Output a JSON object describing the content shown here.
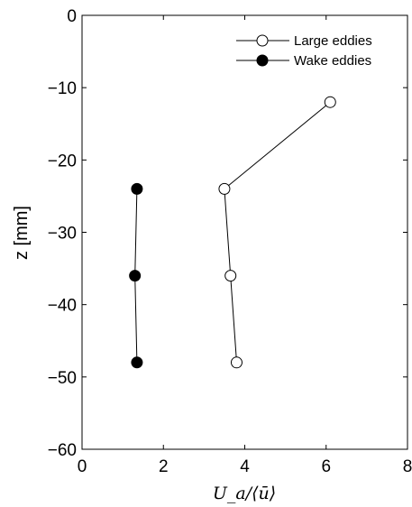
{
  "chart_data": {
    "type": "line",
    "xlabel": "U_a/⟨ū⟩",
    "ylabel": "z [mm]",
    "xlim": [
      0,
      8
    ],
    "ylim": [
      -60,
      0
    ],
    "xticks": [
      0,
      2,
      4,
      6,
      8
    ],
    "yticks": [
      0,
      -10,
      -20,
      -30,
      -40,
      -50,
      -60
    ],
    "xtick_labels": [
      "0",
      "2",
      "4",
      "6",
      "8"
    ],
    "ytick_labels": [
      "0",
      "−10",
      "−20",
      "−30",
      "−40",
      "−50",
      "−60"
    ],
    "grid": false,
    "legend_position": "top-right",
    "series": [
      {
        "name": "Large eddies",
        "marker": "open-circle",
        "x": [
          6.1,
          3.5,
          3.65,
          3.8
        ],
        "y": [
          -12,
          -24,
          -36,
          -48
        ]
      },
      {
        "name": "Wake eddies",
        "marker": "filled-circle",
        "x": [
          1.35,
          1.3,
          1.35
        ],
        "y": [
          -24,
          -36,
          -48
        ]
      }
    ]
  }
}
